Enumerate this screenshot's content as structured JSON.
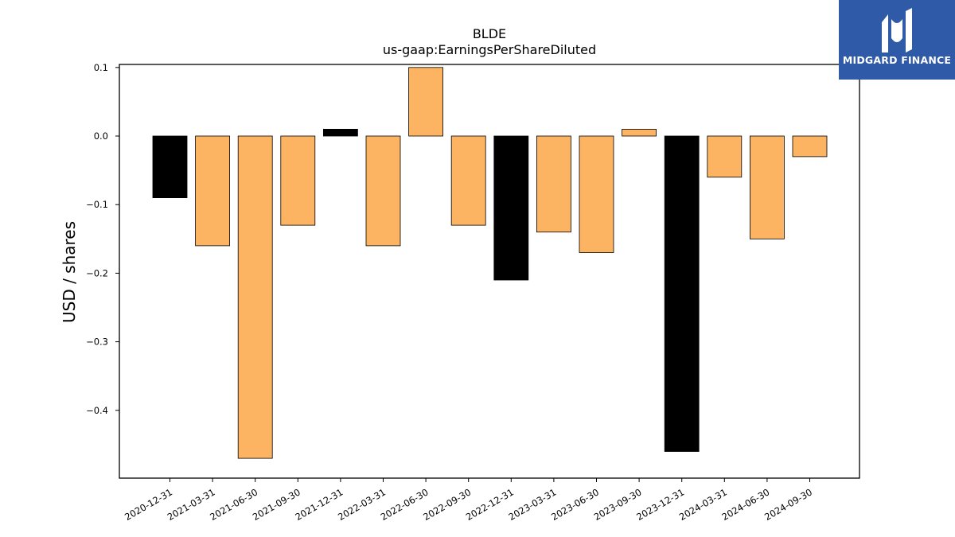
{
  "logo": {
    "text": "MIDGARD FINANCE",
    "icon": "midgard-m-mark-icon",
    "background": "#2f5aa8"
  },
  "chart_data": {
    "type": "bar",
    "title": "BLDE",
    "subtitle": "us-gaap:EarningsPerShareDiluted",
    "xlabel": "",
    "ylabel": "USD / shares",
    "ylim": [
      -0.5,
      0.1
    ],
    "yticks": [
      0.1,
      0.0,
      -0.1,
      -0.2,
      -0.3,
      -0.4
    ],
    "ytick_labels": [
      "0.1",
      "0.0",
      "−0.1",
      "−0.2",
      "−0.3",
      "−0.4"
    ],
    "grid": false,
    "categories": [
      "2020-12-31",
      "2021-03-31",
      "2021-06-30",
      "2021-09-30",
      "2021-12-31",
      "2022-03-31",
      "2022-06-30",
      "2022-09-30",
      "2022-12-31",
      "2023-03-31",
      "2023-06-30",
      "2023-09-30",
      "2023-12-31",
      "2024-03-31",
      "2024-06-30",
      "2024-09-30"
    ],
    "values": [
      -0.09,
      -0.16,
      -0.47,
      -0.13,
      0.01,
      -0.16,
      0.1,
      -0.13,
      -0.21,
      -0.14,
      -0.17,
      0.01,
      -0.46,
      -0.06,
      -0.15,
      -0.03
    ],
    "bar_colors": [
      "#000000",
      "#fdb462",
      "#fdb462",
      "#fdb462",
      "#000000",
      "#fdb462",
      "#fdb462",
      "#fdb462",
      "#000000",
      "#fdb462",
      "#fdb462",
      "#fdb462",
      "#000000",
      "#fdb462",
      "#fdb462",
      "#fdb462"
    ]
  }
}
